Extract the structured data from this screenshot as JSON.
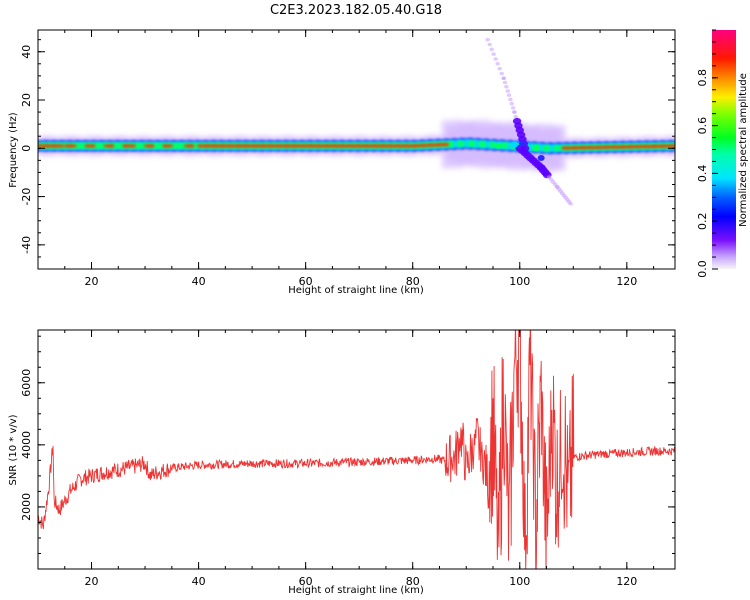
{
  "title": "C2E3.2023.182.05.40.G18",
  "chart_data": [
    {
      "type": "heatmap",
      "xlabel": "Height of straight line (km)",
      "ylabel": "Frequency (Hz)",
      "xlim": [
        10,
        129
      ],
      "ylim": [
        -50,
        49
      ],
      "xticks": [
        "20",
        "40",
        "60",
        "80",
        "100",
        "120"
      ],
      "yticks": [
        "-40",
        "-20",
        "0",
        "20",
        "40"
      ],
      "colorbar": {
        "label": "Normalized spectral amplitude",
        "range": [
          0,
          1
        ],
        "ticks": [
          "0.0",
          "0.2",
          "0.4",
          "0.6",
          "0.8"
        ],
        "colormap": "gist_rainbow",
        "colors": [
          "#f5f5f5",
          "#6a00ff",
          "#0000ff",
          "#00e5ff",
          "#00ff40",
          "#ffee00",
          "#ff7700",
          "#ff0000",
          "#ff0080"
        ]
      },
      "ridge": {
        "description_points_km_hz": [
          [
            10,
            1
          ],
          [
            80,
            1
          ],
          [
            90,
            2
          ],
          [
            98,
            1
          ],
          [
            105,
            0
          ],
          [
            129,
            1
          ]
        ],
        "rising_branch": [
          [
            94,
            45
          ],
          [
            97,
            29
          ],
          [
            99,
            15
          ],
          [
            101,
            0
          ]
        ],
        "falling_branch": [
          [
            100,
            0
          ],
          [
            104,
            -8
          ],
          [
            107,
            -16
          ],
          [
            109.5,
            -23
          ]
        ]
      }
    },
    {
      "type": "line",
      "xlabel": "Height of straight line (km)",
      "ylabel": "SNR (10 * v/v)",
      "xlim": [
        10,
        129
      ],
      "ylim": [
        0,
        7700
      ],
      "xticks": [
        "20",
        "40",
        "60",
        "80",
        "100",
        "120"
      ],
      "yticks": [
        "2000",
        "4000",
        "6000"
      ],
      "color": "#ee3333",
      "series": [
        {
          "x": [
            10,
            11,
            12,
            12.8,
            13,
            14,
            16,
            18,
            20,
            22,
            25,
            28,
            30,
            31,
            32,
            35,
            40,
            50,
            60,
            70,
            80,
            84,
            86,
            88,
            89,
            90,
            92,
            94,
            95,
            96,
            97,
            98,
            99,
            100,
            101,
            102,
            103,
            104,
            105,
            106,
            107,
            108,
            109,
            110,
            112,
            115,
            120,
            125,
            129
          ],
          "y": [
            1700,
            1400,
            2600,
            4000,
            2200,
            1900,
            2500,
            2900,
            3000,
            3100,
            3200,
            3300,
            3400,
            3000,
            3100,
            3250,
            3350,
            3400,
            3400,
            3450,
            3500,
            3550,
            3500,
            3600,
            4300,
            3300,
            4200,
            3000,
            4500,
            500,
            5800,
            1000,
            6500,
            7600,
            900,
            6800,
            1300,
            5700,
            700,
            5200,
            2600,
            4600,
            2400,
            3600,
            3650,
            3700,
            3750,
            3800,
            3800
          ]
        }
      ]
    }
  ]
}
